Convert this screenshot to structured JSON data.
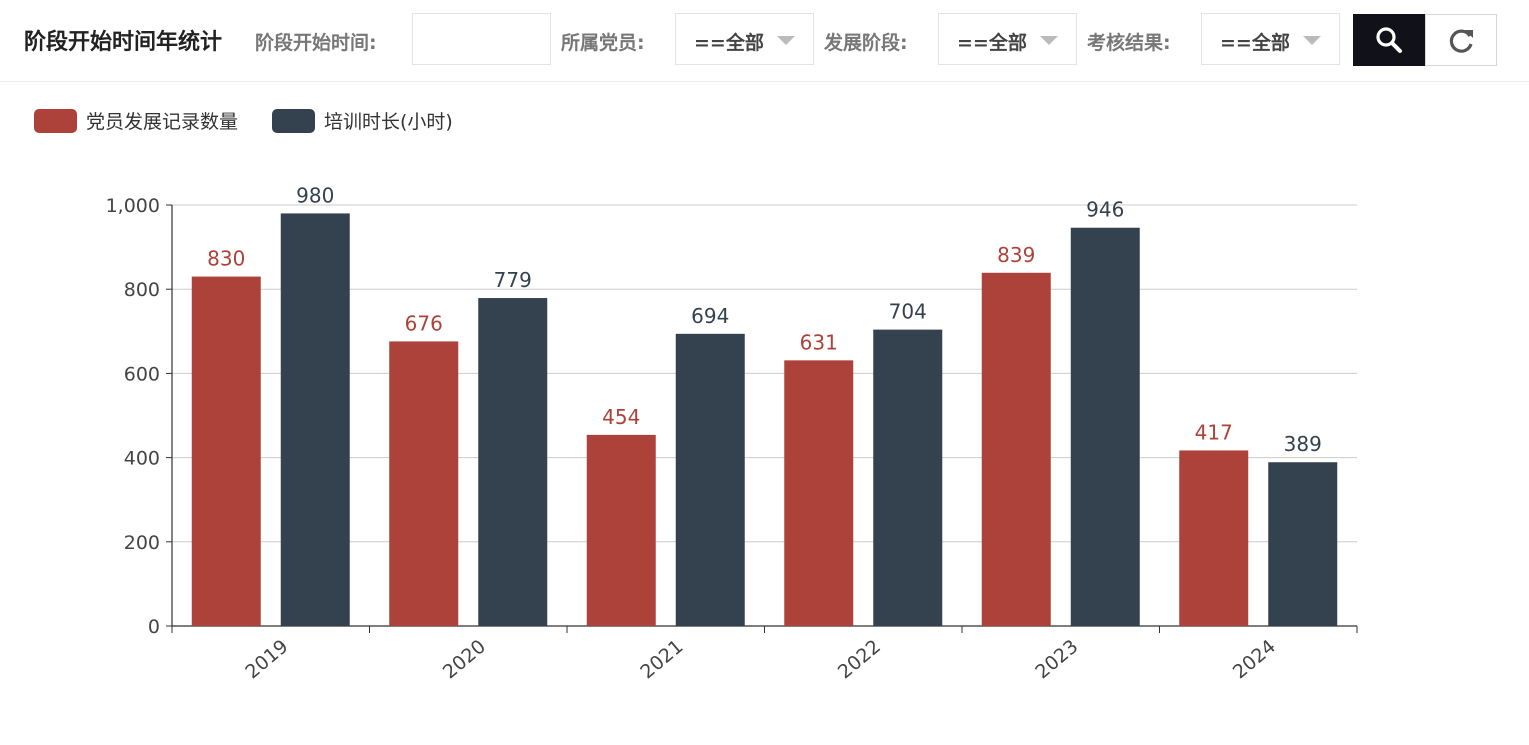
{
  "header": {
    "title": "阶段开始时间年统计"
  },
  "filters": {
    "start_time_label": "阶段开始时间:",
    "start_time_value": "",
    "member_label": "所属党员:",
    "member_value": "==全部",
    "stage_label": "发展阶段:",
    "stage_value": "==全部",
    "result_label": "考核结果:",
    "result_value": "==全部"
  },
  "icons": {
    "search": "search-icon",
    "reset": "refresh-icon",
    "dropdown": "chevron-down-icon"
  },
  "colors": {
    "series1": "#ad423a",
    "series2": "#34424f",
    "search_button": "#111119"
  },
  "chart_data": {
    "type": "bar",
    "categories": [
      "2019",
      "2020",
      "2021",
      "2022",
      "2023",
      "2024"
    ],
    "series": [
      {
        "name": "党员发展记录数量",
        "values": [
          830,
          676,
          454,
          631,
          839,
          417
        ]
      },
      {
        "name": "培训时长(小时)",
        "values": [
          980,
          779,
          694,
          704,
          946,
          389
        ]
      }
    ],
    "ylim": [
      0,
      1000
    ],
    "yticks": [
      "0",
      "200",
      "400",
      "600",
      "800",
      "1,000"
    ],
    "ytick_values": [
      0,
      200,
      400,
      600,
      800,
      1000
    ],
    "grid": true,
    "legend": "top-left",
    "data_labels": true
  }
}
